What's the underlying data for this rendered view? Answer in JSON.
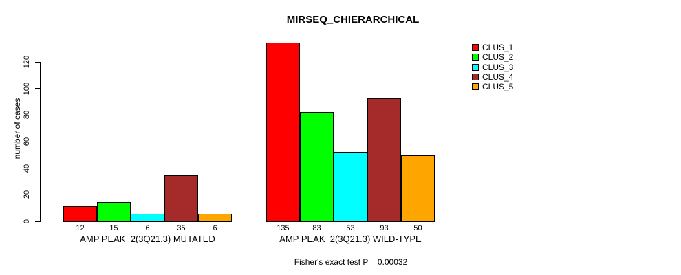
{
  "chart_data": {
    "type": "bar",
    "title": "MIRSEQ_CHIERARCHICAL",
    "ylabel": "number of cases",
    "ylim": [
      0,
      120
    ],
    "yticks": [
      0,
      20,
      40,
      60,
      80,
      100,
      120
    ],
    "grid": false,
    "legend_position": "top-right",
    "clusters": [
      "CLUS_1",
      "CLUS_2",
      "CLUS_3",
      "CLUS_4",
      "CLUS_5"
    ],
    "colors": [
      "#FF0000",
      "#00FF00",
      "#00FFFF",
      "#A52A2A",
      "#FFA500"
    ],
    "groups": [
      {
        "label": "AMP PEAK  2(3Q21.3) MUTATED",
        "values": [
          12,
          15,
          6,
          35,
          6
        ]
      },
      {
        "label": "AMP PEAK  2(3Q21.3) WILD-TYPE",
        "values": [
          135,
          83,
          53,
          93,
          50
        ]
      }
    ],
    "series": [
      {
        "name": "CLUS_1",
        "color": "#FF0000",
        "values": [
          12,
          135
        ]
      },
      {
        "name": "CLUS_2",
        "color": "#00FF00",
        "values": [
          15,
          83
        ]
      },
      {
        "name": "CLUS_3",
        "color": "#00FFFF",
        "values": [
          6,
          53
        ]
      },
      {
        "name": "CLUS_4",
        "color": "#A52A2A",
        "values": [
          35,
          93
        ]
      },
      {
        "name": "CLUS_5",
        "color": "#FFA500",
        "values": [
          6,
          50
        ]
      }
    ],
    "annotation": "Fisher's exact test P = 0.00032"
  }
}
